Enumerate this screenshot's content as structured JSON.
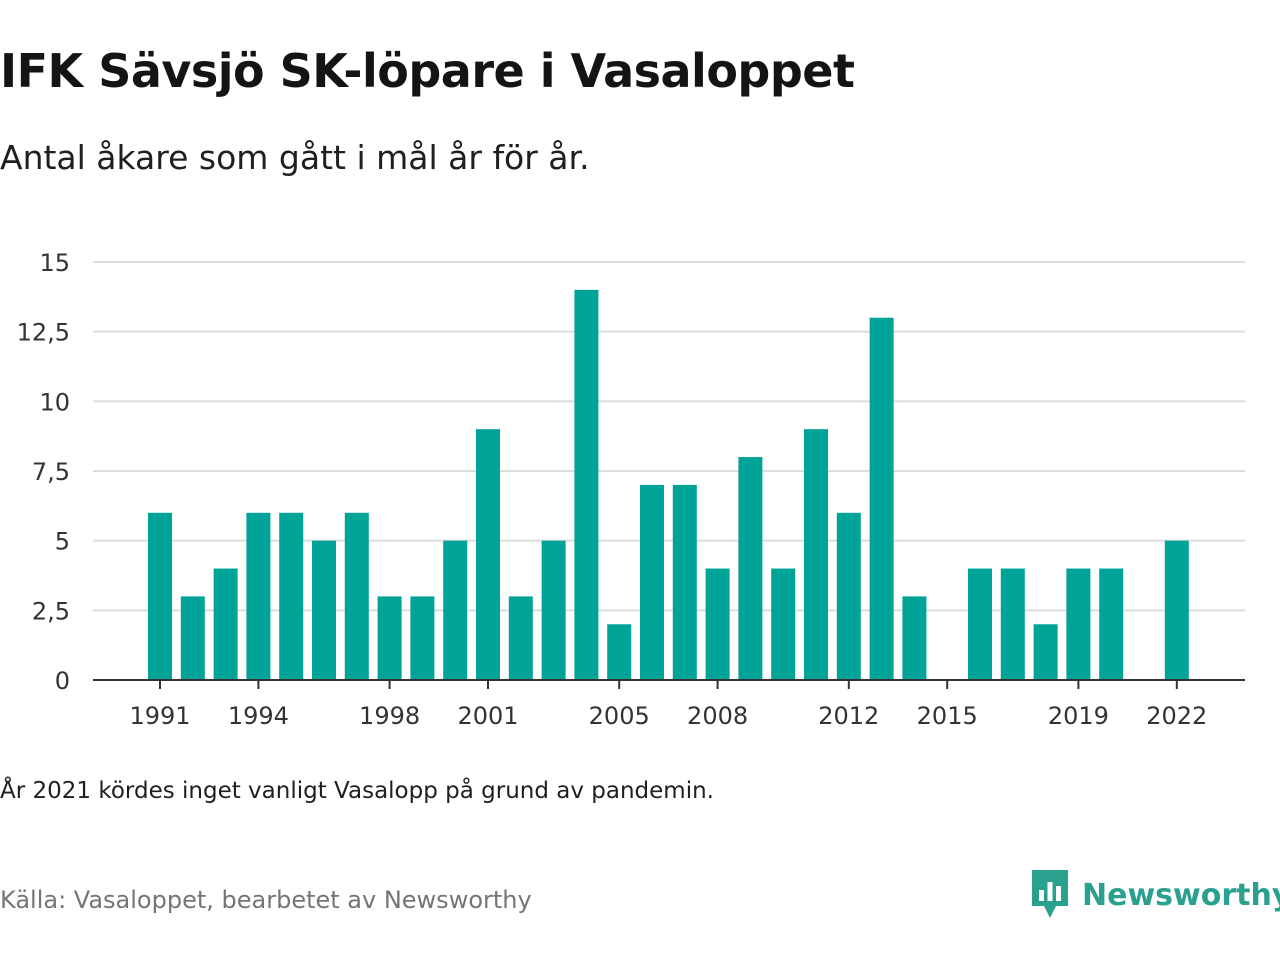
{
  "title": "IFK Sävsjö SK-löpare i Vasaloppet",
  "subtitle": "Antal åkare som gått i mål år för år.",
  "note": "År 2021 kördes inget vanligt Vasalopp på grund av pandemin.",
  "source": "Källa: Vasaloppet, bearbetet av Newsworthy",
  "brand": {
    "name": "Newsworthy",
    "icon": "newsworthy-logo-icon",
    "color": "#2aa08f"
  },
  "chart_data": {
    "type": "bar",
    "title": "",
    "xlabel": "",
    "ylabel": "",
    "color": "#00a397",
    "ylim": [
      0,
      15
    ],
    "grid": true,
    "legend": "none",
    "y_ticks": [
      {
        "value": 0,
        "label": "0"
      },
      {
        "value": 2.5,
        "label": "2,5"
      },
      {
        "value": 5,
        "label": "5"
      },
      {
        "value": 7.5,
        "label": "7,5"
      },
      {
        "value": 10,
        "label": "10"
      },
      {
        "value": 12.5,
        "label": "12,5"
      },
      {
        "value": 15,
        "label": "15"
      }
    ],
    "x_ticks": [
      "1991",
      "1994",
      "1998",
      "2001",
      "2005",
      "2008",
      "2012",
      "2015",
      "2019",
      "2022"
    ],
    "categories": [
      "1991",
      "1992",
      "1993",
      "1994",
      "1995",
      "1996",
      "1997",
      "1998",
      "1999",
      "2000",
      "2001",
      "2002",
      "2003",
      "2004",
      "2005",
      "2006",
      "2007",
      "2008",
      "2009",
      "2010",
      "2011",
      "2012",
      "2013",
      "2014",
      "2015",
      "2016",
      "2017",
      "2018",
      "2019",
      "2020",
      "2021",
      "2022"
    ],
    "values": [
      6,
      3,
      4,
      6,
      6,
      5,
      6,
      3,
      3,
      5,
      9,
      3,
      5,
      14,
      2,
      7,
      7,
      4,
      8,
      4,
      9,
      6,
      13,
      3,
      0,
      4,
      4,
      2,
      4,
      4,
      0,
      5
    ]
  }
}
